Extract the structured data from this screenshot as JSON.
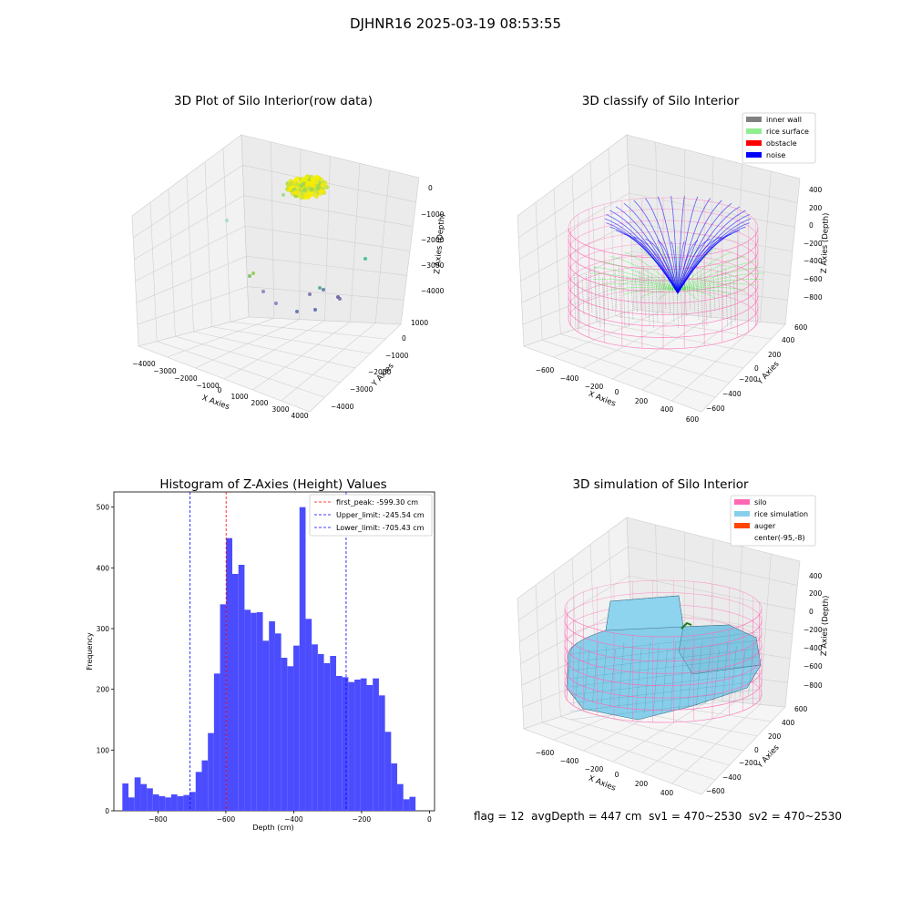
{
  "suptitle": "DJHNR16 2025-03-19 08:53:55",
  "footer": {
    "flag": "flag = 12",
    "avg": "avgDepth = 447 cm",
    "sv1": "sv1 = 470~2530",
    "sv2": "sv2 = 470~2530"
  },
  "colors": {
    "inner_wall": "#808080",
    "rice_surface": "#90ee90",
    "obstacle": "#ff0000",
    "noise": "#0000ff",
    "silo": "#ff69b4",
    "rice_simulation": "#87ceeb",
    "auger": "#ff4500",
    "hist_bar": "#4c4cff",
    "first_peak_line": "#ff0000",
    "limit_line": "#0000ff"
  },
  "panels": {
    "raw": {
      "title": "3D Plot of Silo Interior(row data)",
      "xlabel": "X Axies",
      "ylabel": "Y Axies",
      "zlabel": "Z Axies (Depth)",
      "xticks": [
        "−4000",
        "−3000",
        "−2000",
        "−1000",
        "0",
        "1000",
        "2000",
        "3000",
        "4000"
      ],
      "yticks": [
        "1000",
        "0",
        "−1000",
        "−2000",
        "−3000",
        "−4000"
      ],
      "zticks": [
        "0",
        "−1000",
        "−2000",
        "−3000",
        "−4000"
      ]
    },
    "classify": {
      "title": "3D classify of Silo Interior",
      "xlabel": "X Axies",
      "ylabel": "Y Axies",
      "zlabel": "Z Axies (Depth)",
      "xticks": [
        "−600",
        "−400",
        "−200",
        "0",
        "200",
        "400",
        "600"
      ],
      "yticks": [
        "600",
        "400",
        "200",
        "0",
        "−200",
        "−400",
        "−600"
      ],
      "zticks": [
        "400",
        "200",
        "0",
        "−200",
        "−400",
        "−600",
        "−800"
      ],
      "legend": [
        "inner wall",
        "rice surface",
        "obstacle",
        "noise"
      ]
    },
    "simulation": {
      "title": "3D simulation of Silo Interior",
      "xlabel": "X Axies",
      "ylabel": "Y Axies",
      "zlabel": "Z Axies (Depth)",
      "xticks": [
        "−600",
        "−400",
        "−200",
        "0",
        "200",
        "400"
      ],
      "yticks": [
        "600",
        "400",
        "200",
        "0",
        "−200",
        "−400",
        "−600"
      ],
      "zticks": [
        "400",
        "200",
        "0",
        "−200",
        "−400",
        "−600",
        "−800"
      ],
      "legend": [
        "silo",
        "rice simulation",
        "auger",
        "center(-95,-8)"
      ]
    }
  },
  "chart_data": {
    "type": "bar",
    "title": "Histogram of Z-Axies (Height) Values",
    "xlabel": "Depth (cm)",
    "ylabel": "Frequency",
    "xlim": [
      -930,
      15
    ],
    "ylim": [
      0,
      525
    ],
    "xticks": [
      -800,
      -600,
      -400,
      -200,
      0
    ],
    "xtick_labels": [
      "−800",
      "−600",
      "−400",
      "−200",
      "0"
    ],
    "yticks": [
      0,
      100,
      200,
      300,
      400,
      500
    ],
    "bin_start": -905,
    "bin_width": 18,
    "values": [
      45,
      22,
      55,
      44,
      37,
      27,
      24,
      22,
      27,
      24,
      26,
      31,
      64,
      83,
      128,
      226,
      340,
      449,
      390,
      405,
      331,
      326,
      327,
      280,
      312,
      292,
      252,
      238,
      272,
      500,
      316,
      274,
      258,
      243,
      255,
      222,
      220,
      212,
      216,
      218,
      207,
      218,
      190,
      130,
      78,
      44,
      19,
      23
    ],
    "vlines": [
      {
        "label": "first_peak: -599.30 cm",
        "x": -599.3,
        "color": "#ff0000"
      },
      {
        "label": "Upper_limit: -245.54 cm",
        "x": -245.54,
        "color": "#0000ff"
      },
      {
        "label": "Lower_limit: -705.43 cm",
        "x": -705.43,
        "color": "#0000ff"
      }
    ]
  }
}
